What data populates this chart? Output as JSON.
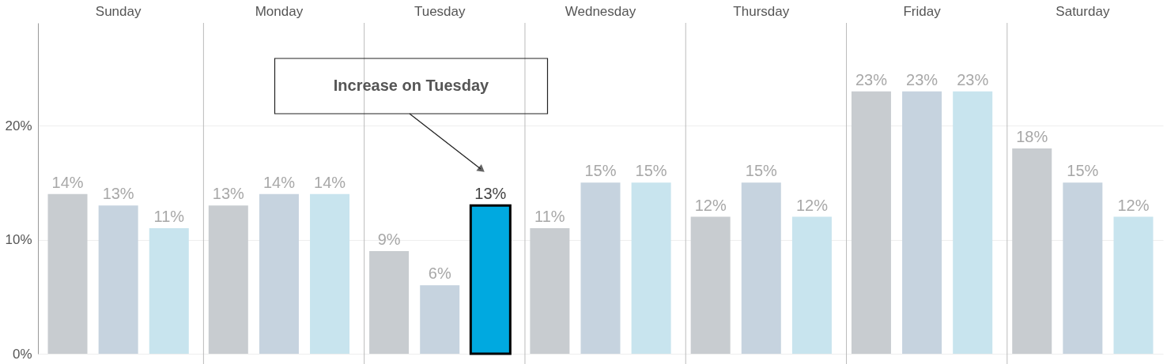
{
  "chart_data": {
    "type": "bar",
    "categories": [
      "Sunday",
      "Monday",
      "Tuesday",
      "Wednesday",
      "Thursday",
      "Friday",
      "Saturday"
    ],
    "series": [
      {
        "color": "#c8ccd0",
        "values": [
          14,
          13,
          9,
          11,
          12,
          23,
          18
        ],
        "value_labels": [
          "14%",
          "13%",
          "9%",
          "11%",
          "12%",
          "23%",
          "18%"
        ]
      },
      {
        "color": "#c6d3df",
        "values": [
          13,
          14,
          6,
          15,
          15,
          23,
          15
        ],
        "value_labels": [
          "13%",
          "14%",
          "6%",
          "15%",
          "15%",
          "23%",
          "15%"
        ]
      },
      {
        "color": "#c8e4ee",
        "colors": [
          "#c8e4ee",
          "#c8e4ee",
          "#00a9e0",
          "#c8e4ee",
          "#c8e4ee",
          "#c8e4ee",
          "#c8e4ee"
        ],
        "values": [
          11,
          14,
          13,
          15,
          12,
          23,
          12
        ],
        "value_labels": [
          "11%",
          "14%",
          "13%",
          "15%",
          "12%",
          "23%",
          "12%"
        ]
      }
    ],
    "ylim": [
      0,
      29
    ],
    "yticks": [
      {
        "value": 0,
        "label": "0%"
      },
      {
        "value": 10,
        "label": "10%"
      },
      {
        "value": 20,
        "label": "20%"
      }
    ],
    "grid": true,
    "annotations": [
      "Increase on Tuesday"
    ]
  }
}
